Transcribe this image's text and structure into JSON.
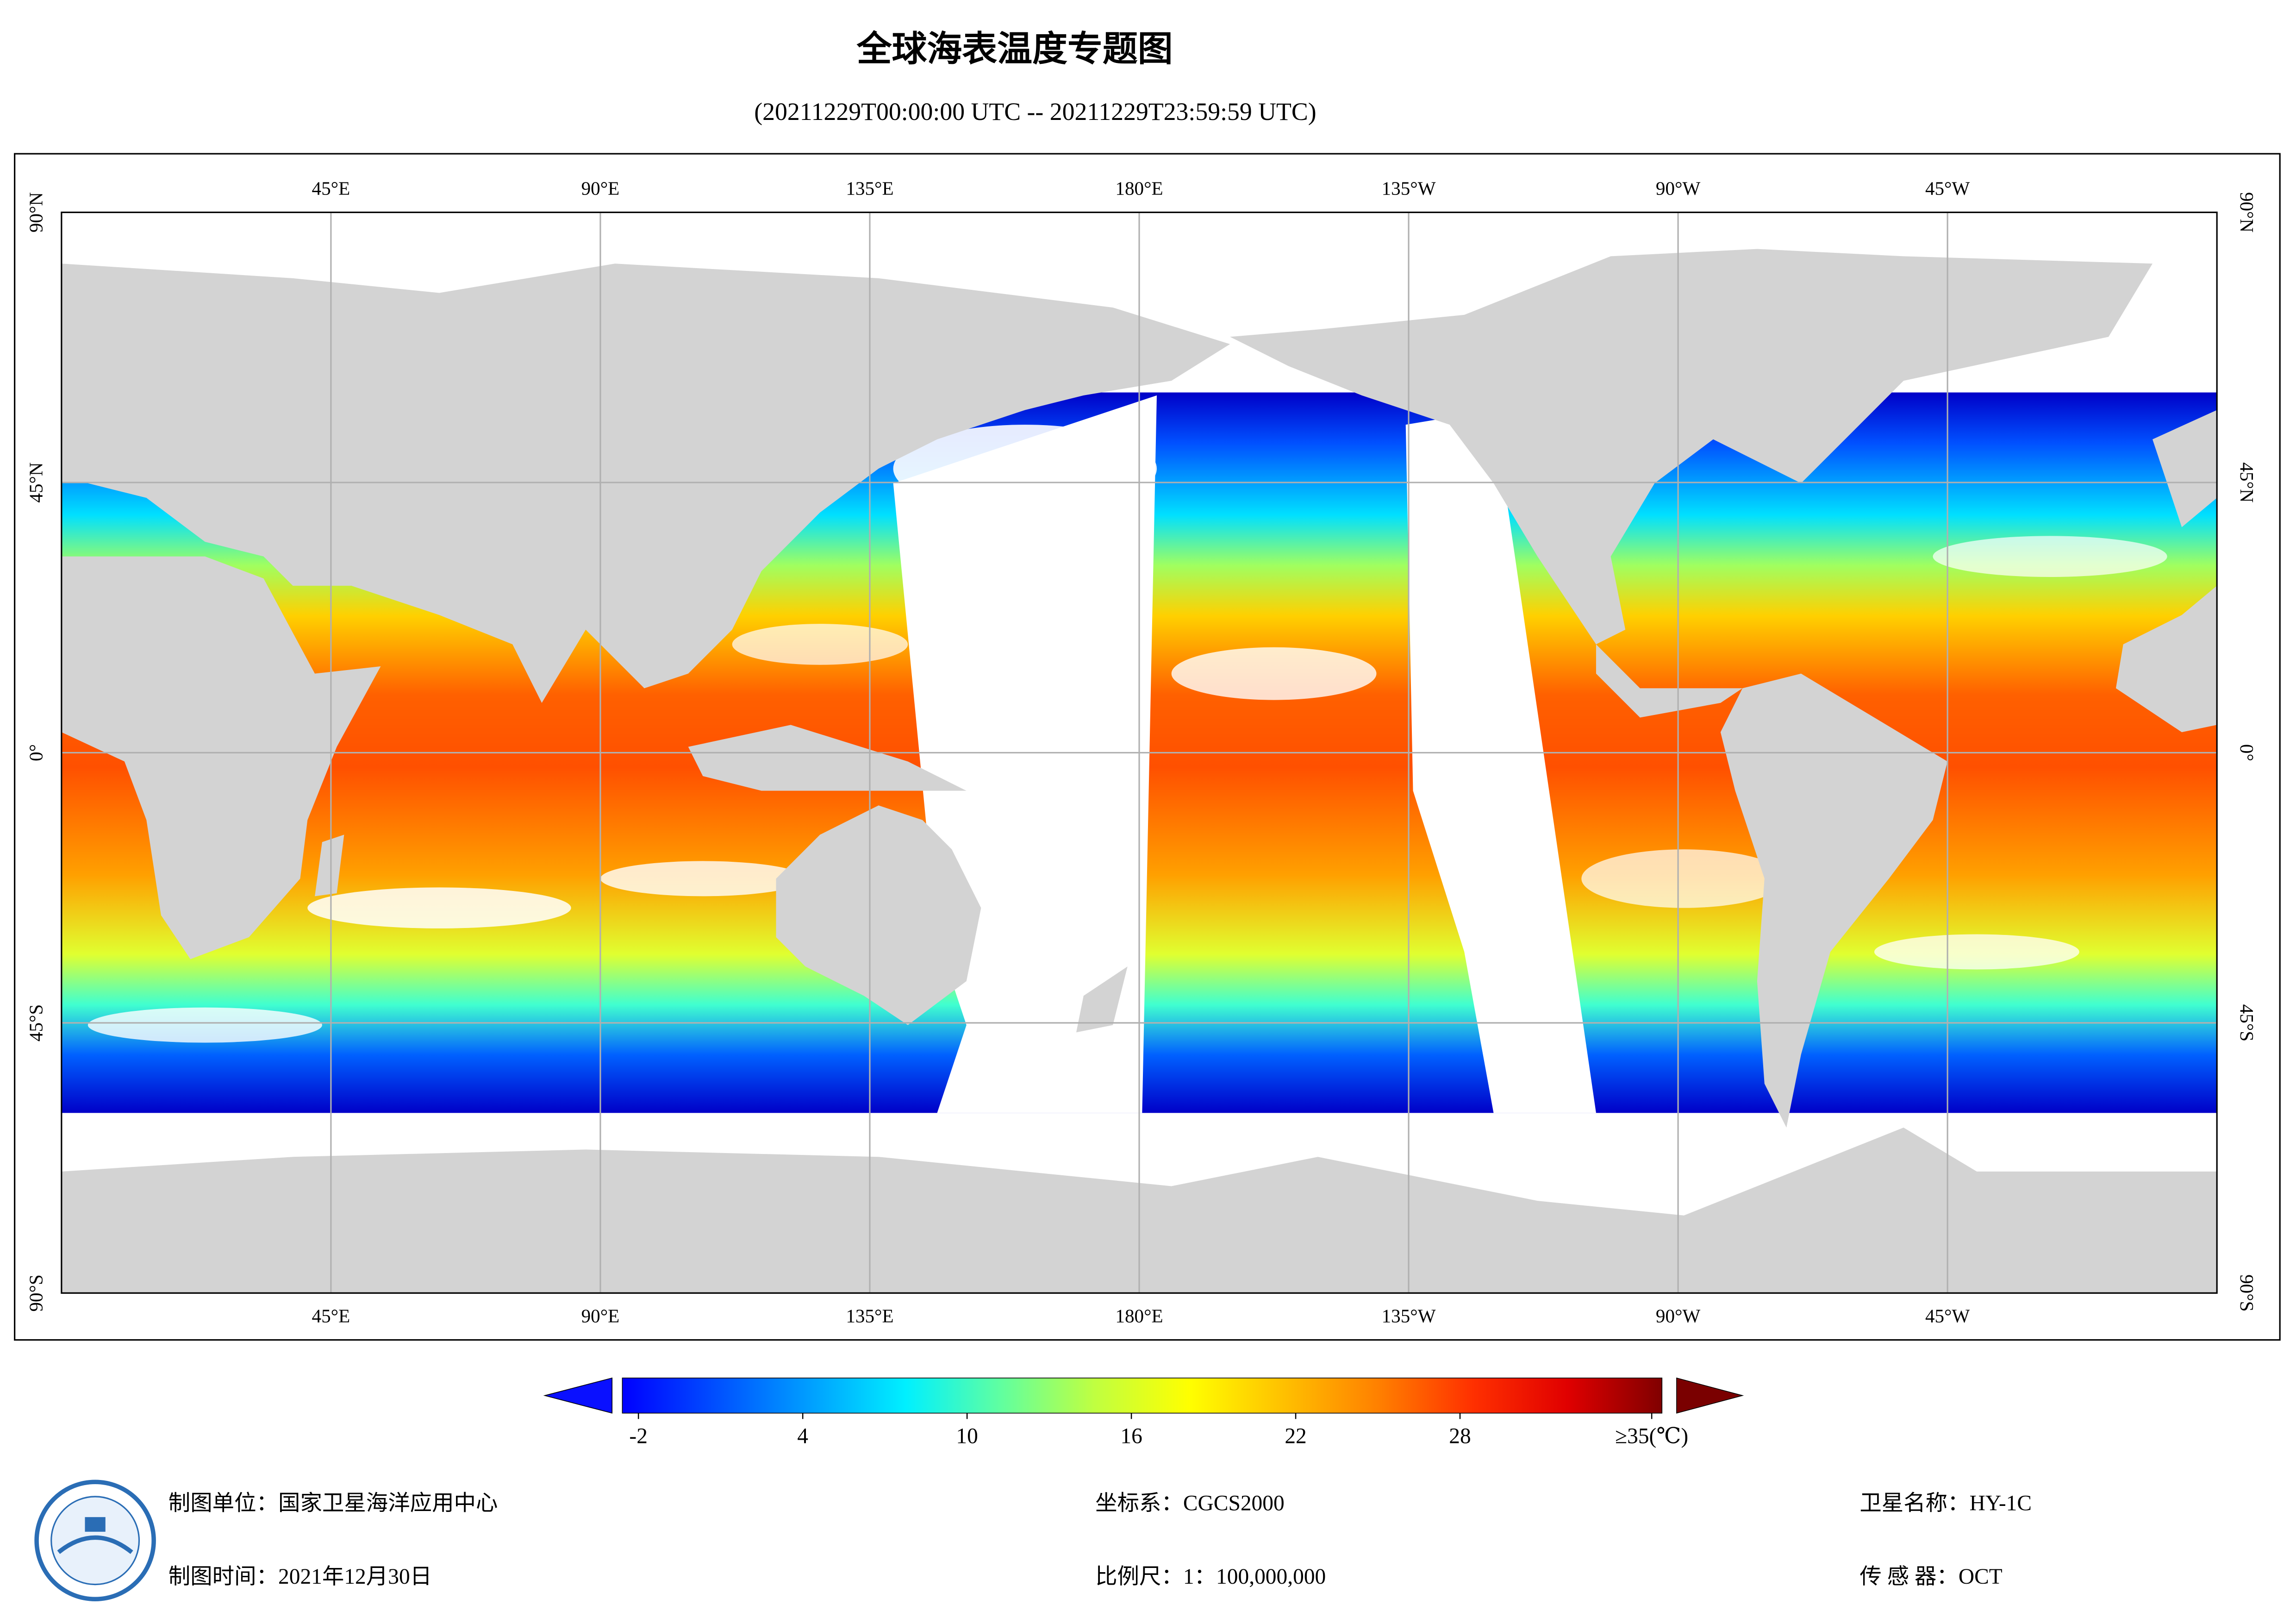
{
  "header": {
    "title": "全球海表温度专题图",
    "subtitle": "(20211229T00:00:00 UTC -- 20211229T23:59:59 UTC)"
  },
  "map": {
    "lon_ticks": [
      {
        "value": 45,
        "label": "45°E"
      },
      {
        "value": 90,
        "label": "90°E"
      },
      {
        "value": 135,
        "label": "135°E"
      },
      {
        "value": 180,
        "label": "180°E"
      },
      {
        "value": -135,
        "label": "135°W"
      },
      {
        "value": -90,
        "label": "90°W"
      },
      {
        "value": -45,
        "label": "45°W"
      }
    ],
    "lat_ticks": [
      {
        "value": 90,
        "label": "90°N"
      },
      {
        "value": 45,
        "label": "45°N"
      },
      {
        "value": 0,
        "label": "0°"
      },
      {
        "value": -45,
        "label": "45°S"
      },
      {
        "value": -90,
        "label": "90°S"
      }
    ],
    "grid": true
  },
  "colorbar": {
    "colors": [
      "#0000ff",
      "#0050ff",
      "#00a0ff",
      "#00f0ff",
      "#60ffa0",
      "#c0ff40",
      "#ffff00",
      "#ffc000",
      "#ff8000",
      "#ff3000",
      "#e00000",
      "#800000"
    ],
    "under_color": "#0a10ff",
    "over_color": "#7a0000",
    "ticks": [
      -2,
      4,
      10,
      16,
      22,
      28,
      {
        "value": 35,
        "label": "≥35(℃)"
      }
    ]
  },
  "footer": {
    "producer": "制图单位：国家卫星海洋应用中心",
    "date": "制图时间：2021年12月30日",
    "crs": "坐标系：CGCS2000",
    "scale": "比例尺：1：100,000,000",
    "satellite": "卫星名称：HY-1C",
    "sensor": "传 感 器：OCT"
  }
}
